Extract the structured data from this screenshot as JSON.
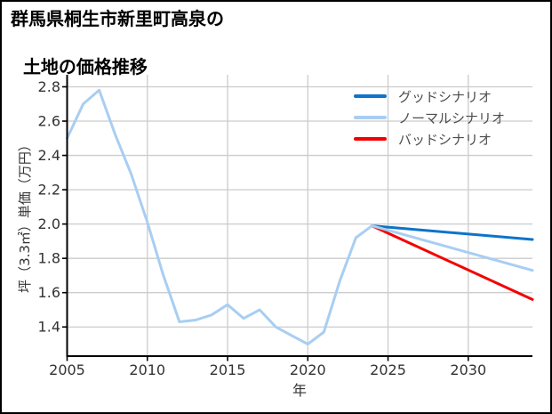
{
  "title": {
    "line1": "群馬県桐生市新里町高泉の",
    "line2": "土地の価格推移"
  },
  "legend": {
    "items": [
      {
        "label": "グッドシナリオ",
        "color": "#0d74c9"
      },
      {
        "label": "ノーマルシナリオ",
        "color": "#a8cef2"
      },
      {
        "label": "バッドシナリオ",
        "color": "#f40000"
      }
    ]
  },
  "colors": {
    "grid": "#cccccc",
    "spine": "#000000",
    "tick_label": "#333333",
    "history_blue": "#a8cef2",
    "good_blue": "#0d74c9",
    "bad_red": "#f40000"
  },
  "chart_data": {
    "type": "line",
    "title": "群馬県桐生市新里町高泉の土地の価格推移",
    "xlabel": "年",
    "ylabel": "坪（3.3㎡）単価（万円）",
    "xlim": [
      2005,
      2034
    ],
    "ylim": [
      1.23,
      2.87
    ],
    "xticks": [
      2005,
      2010,
      2015,
      2020,
      2025,
      2030
    ],
    "yticks": [
      1.4,
      1.6,
      1.8,
      2.0,
      2.2,
      2.4,
      2.6,
      2.8
    ],
    "grid": true,
    "legend_position": "upper right",
    "series": [
      {
        "name": "グッドシナリオ",
        "color": "#0d74c9",
        "x": [
          2024,
          2034
        ],
        "values": [
          1.99,
          1.91
        ]
      },
      {
        "name": "バッドシナリオ",
        "color": "#f40000",
        "x": [
          2024,
          2034
        ],
        "values": [
          1.99,
          1.56
        ]
      },
      {
        "name": "ノーマルシナリオ",
        "color": "#a8cef2",
        "x": [
          2005,
          2006,
          2007,
          2008,
          2009,
          2010,
          2011,
          2012,
          2013,
          2014,
          2015,
          2016,
          2017,
          2018,
          2019,
          2020,
          2021,
          2022,
          2023,
          2024
        ],
        "values": [
          2.5,
          2.7,
          2.78,
          2.52,
          2.29,
          2.01,
          1.7,
          1.43,
          1.44,
          1.47,
          1.53,
          1.45,
          1.5,
          1.4,
          1.35,
          1.3,
          1.37,
          1.67,
          1.92,
          1.99
        ]
      },
      {
        "name": "ノーマルシナリオ",
        "color": "#a8cef2",
        "x": [
          2024,
          2034
        ],
        "values": [
          1.99,
          1.73
        ]
      }
    ]
  }
}
